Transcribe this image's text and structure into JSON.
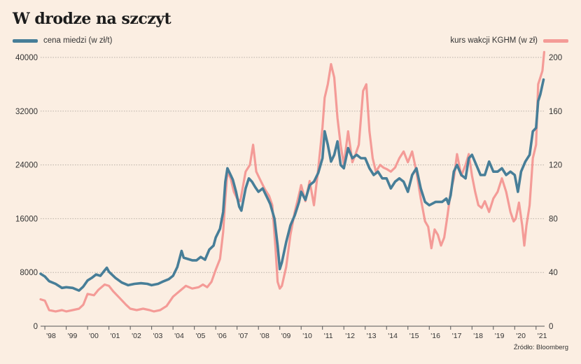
{
  "title": "W drodze na szczyt",
  "source": "Źródło: Bloomberg",
  "colors": {
    "copper": "#477e98",
    "kghm": "#f49b97",
    "background": "#fbeee2",
    "grid": "#b9b0a8"
  },
  "chart_data": {
    "type": "line",
    "title": "W drodze na szczyt",
    "x_ticks": [
      "'98",
      "'99",
      "'00",
      "'01",
      "'02",
      "'03",
      "'04",
      "'05",
      "'06",
      "'07",
      "'08",
      "'09",
      "'10",
      "'11",
      "'12",
      "'13",
      "'14",
      "'15",
      "'16",
      "'17",
      "'18",
      "'19",
      "'20",
      "'21"
    ],
    "y_left": {
      "label": "cena miedzi (w zł/t)",
      "ticks": [
        0,
        8000,
        16000,
        24000,
        32000,
        40000
      ],
      "range": [
        0,
        40000
      ]
    },
    "y_right": {
      "label": "kurs wakcji KGHM (w zł)",
      "ticks": [
        0,
        40,
        80,
        120,
        160,
        200
      ],
      "range": [
        0,
        200
      ]
    },
    "grid": "horizontal dotted",
    "x_range": [
      1997.8,
      2021.4
    ],
    "series": [
      {
        "name": "cena miedzi (w zł/t)",
        "axis": "left",
        "color": "#477e98",
        "points": [
          [
            1997.8,
            7800
          ],
          [
            1998.0,
            7400
          ],
          [
            1998.2,
            6700
          ],
          [
            1998.5,
            6300
          ],
          [
            1998.8,
            5700
          ],
          [
            1999.0,
            5800
          ],
          [
            1999.3,
            5700
          ],
          [
            1999.6,
            5300
          ],
          [
            1999.8,
            5900
          ],
          [
            2000.0,
            6800
          ],
          [
            2000.2,
            7200
          ],
          [
            2000.4,
            7700
          ],
          [
            2000.6,
            7500
          ],
          [
            2000.8,
            8300
          ],
          [
            2000.9,
            8700
          ],
          [
            2001.0,
            8100
          ],
          [
            2001.3,
            7200
          ],
          [
            2001.6,
            6500
          ],
          [
            2001.9,
            6100
          ],
          [
            2002.2,
            6300
          ],
          [
            2002.5,
            6400
          ],
          [
            2002.8,
            6300
          ],
          [
            2003.0,
            6100
          ],
          [
            2003.3,
            6300
          ],
          [
            2003.5,
            6600
          ],
          [
            2003.8,
            7000
          ],
          [
            2004.0,
            7500
          ],
          [
            2004.2,
            8800
          ],
          [
            2004.4,
            11200
          ],
          [
            2004.5,
            10200
          ],
          [
            2004.7,
            10000
          ],
          [
            2004.9,
            9800
          ],
          [
            2005.1,
            9800
          ],
          [
            2005.3,
            10300
          ],
          [
            2005.5,
            9900
          ],
          [
            2005.7,
            11400
          ],
          [
            2005.9,
            12000
          ],
          [
            2006.0,
            13200
          ],
          [
            2006.2,
            14500
          ],
          [
            2006.35,
            17000
          ],
          [
            2006.45,
            21500
          ],
          [
            2006.55,
            23500
          ],
          [
            2006.7,
            22500
          ],
          [
            2006.8,
            21800
          ],
          [
            2006.95,
            20000
          ],
          [
            2007.1,
            17800
          ],
          [
            2007.2,
            17200
          ],
          [
            2007.4,
            20500
          ],
          [
            2007.55,
            22000
          ],
          [
            2007.7,
            21500
          ],
          [
            2007.85,
            20700
          ],
          [
            2008.0,
            20000
          ],
          [
            2008.2,
            20500
          ],
          [
            2008.4,
            19200
          ],
          [
            2008.55,
            18200
          ],
          [
            2008.75,
            16000
          ],
          [
            2008.9,
            12000
          ],
          [
            2009.0,
            8500
          ],
          [
            2009.1,
            9500
          ],
          [
            2009.3,
            12500
          ],
          [
            2009.5,
            15000
          ],
          [
            2009.7,
            16500
          ],
          [
            2009.9,
            18500
          ],
          [
            2010.0,
            20000
          ],
          [
            2010.2,
            18800
          ],
          [
            2010.4,
            21000
          ],
          [
            2010.6,
            21500
          ],
          [
            2010.8,
            22800
          ],
          [
            2011.0,
            25000
          ],
          [
            2011.1,
            29000
          ],
          [
            2011.25,
            27000
          ],
          [
            2011.4,
            24500
          ],
          [
            2011.55,
            25500
          ],
          [
            2011.7,
            27500
          ],
          [
            2011.85,
            24000
          ],
          [
            2012.0,
            23500
          ],
          [
            2012.2,
            26500
          ],
          [
            2012.4,
            25000
          ],
          [
            2012.6,
            25500
          ],
          [
            2012.8,
            25000
          ],
          [
            2013.0,
            25000
          ],
          [
            2013.2,
            23500
          ],
          [
            2013.4,
            22500
          ],
          [
            2013.6,
            23000
          ],
          [
            2013.8,
            22000
          ],
          [
            2014.0,
            22000
          ],
          [
            2014.2,
            20500
          ],
          [
            2014.4,
            21500
          ],
          [
            2014.6,
            22000
          ],
          [
            2014.8,
            21500
          ],
          [
            2015.0,
            20000
          ],
          [
            2015.2,
            22500
          ],
          [
            2015.4,
            23500
          ],
          [
            2015.6,
            20500
          ],
          [
            2015.8,
            18500
          ],
          [
            2016.0,
            18000
          ],
          [
            2016.3,
            18500
          ],
          [
            2016.6,
            18500
          ],
          [
            2016.8,
            19000
          ],
          [
            2016.9,
            18200
          ],
          [
            2017.0,
            19500
          ],
          [
            2017.15,
            23000
          ],
          [
            2017.3,
            24000
          ],
          [
            2017.5,
            22500
          ],
          [
            2017.7,
            22000
          ],
          [
            2017.85,
            25000
          ],
          [
            2018.0,
            25500
          ],
          [
            2018.2,
            24000
          ],
          [
            2018.4,
            22500
          ],
          [
            2018.6,
            22500
          ],
          [
            2018.8,
            24500
          ],
          [
            2019.0,
            23000
          ],
          [
            2019.2,
            23000
          ],
          [
            2019.4,
            23500
          ],
          [
            2019.6,
            22500
          ],
          [
            2019.8,
            23000
          ],
          [
            2020.0,
            22500
          ],
          [
            2020.15,
            20000
          ],
          [
            2020.3,
            23000
          ],
          [
            2020.5,
            24500
          ],
          [
            2020.7,
            25500
          ],
          [
            2020.85,
            29000
          ],
          [
            2021.0,
            29500
          ],
          [
            2021.1,
            33500
          ],
          [
            2021.2,
            34500
          ],
          [
            2021.35,
            36700
          ]
        ]
      },
      {
        "name": "kurs wakcji KGHM (w zł)",
        "axis": "right",
        "color": "#f49b97",
        "points": [
          [
            1997.8,
            20
          ],
          [
            1998.0,
            19
          ],
          [
            1998.2,
            12
          ],
          [
            1998.5,
            11
          ],
          [
            1998.8,
            12
          ],
          [
            1999.0,
            11
          ],
          [
            1999.3,
            12
          ],
          [
            1999.6,
            13
          ],
          [
            1999.8,
            16
          ],
          [
            2000.0,
            24
          ],
          [
            2000.3,
            23
          ],
          [
            2000.5,
            27
          ],
          [
            2000.8,
            31
          ],
          [
            2001.0,
            30
          ],
          [
            2001.2,
            26
          ],
          [
            2001.5,
            21
          ],
          [
            2001.8,
            16
          ],
          [
            2002.0,
            13
          ],
          [
            2002.3,
            12
          ],
          [
            2002.6,
            13
          ],
          [
            2002.9,
            12
          ],
          [
            2003.1,
            11
          ],
          [
            2003.4,
            12
          ],
          [
            2003.7,
            15
          ],
          [
            2004.0,
            22
          ],
          [
            2004.3,
            26
          ],
          [
            2004.6,
            30
          ],
          [
            2004.9,
            28
          ],
          [
            2005.2,
            29
          ],
          [
            2005.4,
            31
          ],
          [
            2005.6,
            29
          ],
          [
            2005.8,
            33
          ],
          [
            2006.0,
            42
          ],
          [
            2006.2,
            50
          ],
          [
            2006.35,
            70
          ],
          [
            2006.45,
            95
          ],
          [
            2006.55,
            115
          ],
          [
            2006.7,
            110
          ],
          [
            2006.85,
            100
          ],
          [
            2007.0,
            95
          ],
          [
            2007.15,
            93
          ],
          [
            2007.4,
            115
          ],
          [
            2007.6,
            120
          ],
          [
            2007.75,
            135
          ],
          [
            2007.9,
            115
          ],
          [
            2008.05,
            110
          ],
          [
            2008.3,
            102
          ],
          [
            2008.5,
            97
          ],
          [
            2008.65,
            90
          ],
          [
            2008.8,
            58
          ],
          [
            2008.9,
            33
          ],
          [
            2009.0,
            28
          ],
          [
            2009.1,
            30
          ],
          [
            2009.3,
            44
          ],
          [
            2009.5,
            68
          ],
          [
            2009.7,
            85
          ],
          [
            2009.9,
            98
          ],
          [
            2010.0,
            105
          ],
          [
            2010.2,
            93
          ],
          [
            2010.4,
            108
          ],
          [
            2010.6,
            90
          ],
          [
            2010.8,
            117
          ],
          [
            2011.0,
            148
          ],
          [
            2011.1,
            170
          ],
          [
            2011.25,
            180
          ],
          [
            2011.4,
            195
          ],
          [
            2011.55,
            185
          ],
          [
            2011.7,
            155
          ],
          [
            2011.85,
            135
          ],
          [
            2012.0,
            120
          ],
          [
            2012.2,
            145
          ],
          [
            2012.4,
            122
          ],
          [
            2012.55,
            128
          ],
          [
            2012.7,
            135
          ],
          [
            2012.9,
            175
          ],
          [
            2013.05,
            180
          ],
          [
            2013.2,
            145
          ],
          [
            2013.35,
            125
          ],
          [
            2013.5,
            115
          ],
          [
            2013.7,
            120
          ],
          [
            2013.85,
            118
          ],
          [
            2014.0,
            117
          ],
          [
            2014.2,
            115
          ],
          [
            2014.4,
            118
          ],
          [
            2014.6,
            125
          ],
          [
            2014.8,
            130
          ],
          [
            2015.0,
            122
          ],
          [
            2015.2,
            130
          ],
          [
            2015.4,
            115
          ],
          [
            2015.6,
            95
          ],
          [
            2015.8,
            78
          ],
          [
            2015.95,
            74
          ],
          [
            2016.1,
            58
          ],
          [
            2016.25,
            72
          ],
          [
            2016.4,
            68
          ],
          [
            2016.55,
            60
          ],
          [
            2016.7,
            66
          ],
          [
            2016.85,
            82
          ],
          [
            2017.0,
            100
          ],
          [
            2017.15,
            110
          ],
          [
            2017.3,
            128
          ],
          [
            2017.5,
            112
          ],
          [
            2017.7,
            120
          ],
          [
            2017.85,
            128
          ],
          [
            2018.0,
            112
          ],
          [
            2018.15,
            100
          ],
          [
            2018.3,
            90
          ],
          [
            2018.45,
            88
          ],
          [
            2018.6,
            93
          ],
          [
            2018.8,
            85
          ],
          [
            2019.0,
            95
          ],
          [
            2019.2,
            100
          ],
          [
            2019.4,
            110
          ],
          [
            2019.6,
            100
          ],
          [
            2019.8,
            85
          ],
          [
            2019.95,
            78
          ],
          [
            2020.05,
            80
          ],
          [
            2020.2,
            92
          ],
          [
            2020.35,
            75
          ],
          [
            2020.45,
            60
          ],
          [
            2020.55,
            75
          ],
          [
            2020.7,
            90
          ],
          [
            2020.85,
            125
          ],
          [
            2021.0,
            135
          ],
          [
            2021.1,
            180
          ],
          [
            2021.2,
            185
          ],
          [
            2021.3,
            190
          ],
          [
            2021.38,
            204
          ]
        ]
      }
    ]
  }
}
